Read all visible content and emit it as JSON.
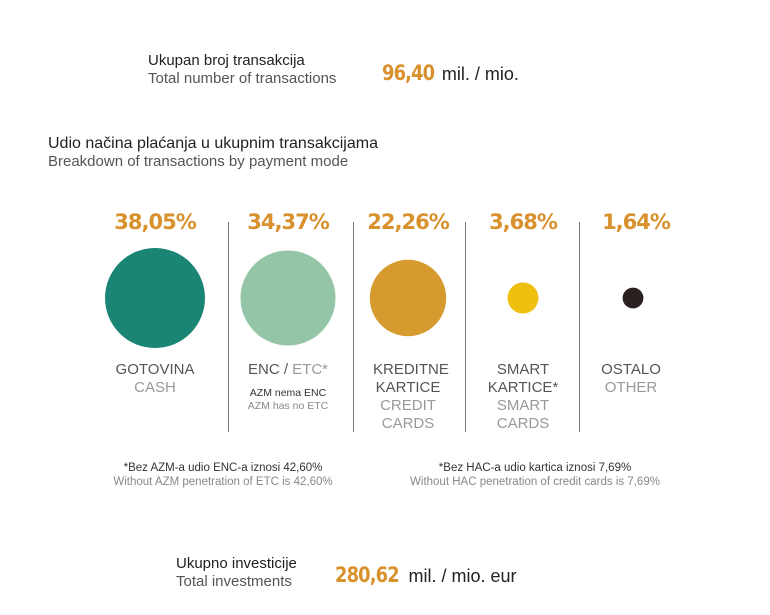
{
  "total_transactions": {
    "label_local": "Ukupan broj transakcija",
    "label_en": "Total number of transactions",
    "value": "96,40",
    "unit": "mil. / mio."
  },
  "breakdown": {
    "title_local": "Udio načina plaćanja u ukupnim transakcijama",
    "title_en": "Breakdown of transactions by payment mode"
  },
  "chart_data": {
    "type": "bubble",
    "unit": "%",
    "categories": [
      {
        "label_local": "GOTOVINA",
        "label_en": "CASH",
        "value": 38.05,
        "value_label": "38,05%",
        "color": "#1a8574"
      },
      {
        "label_local": "ENC /",
        "label_en": "ETC*",
        "value": 34.37,
        "value_label": "34,37%",
        "color": "#93c5a6",
        "note_local": "AZM nema ENC",
        "note_en": "AZM has no ETC"
      },
      {
        "label_local": "KREDITNE KARTICE",
        "label_en": "CREDIT CARDS",
        "value": 22.26,
        "value_label": "22,26%",
        "color": "#d69a2e"
      },
      {
        "label_local": "SMART KARTICE*",
        "label_en": "SMART CARDS",
        "value": 3.68,
        "value_label": "3,68%",
        "color": "#f0c010"
      },
      {
        "label_local": "OSTALO",
        "label_en": "OTHER",
        "value": 1.64,
        "value_label": "1,64%",
        "color": "#2a2020"
      }
    ]
  },
  "footnotes": {
    "enc_local": "*Bez AZM-a udio ENC-a iznosi 42,60%",
    "enc_en": "Without AZM penetration of ETC is 42,60%",
    "cards_local": "*Bez HAC-a udio kartica iznosi 7,69%",
    "cards_en": "Without HAC penetration of credit cards is 7,69%"
  },
  "total_investments": {
    "label_local": "Ukupno investicije",
    "label_en": "Total investments",
    "value": "280,62",
    "unit": "mil. / mio. eur"
  }
}
